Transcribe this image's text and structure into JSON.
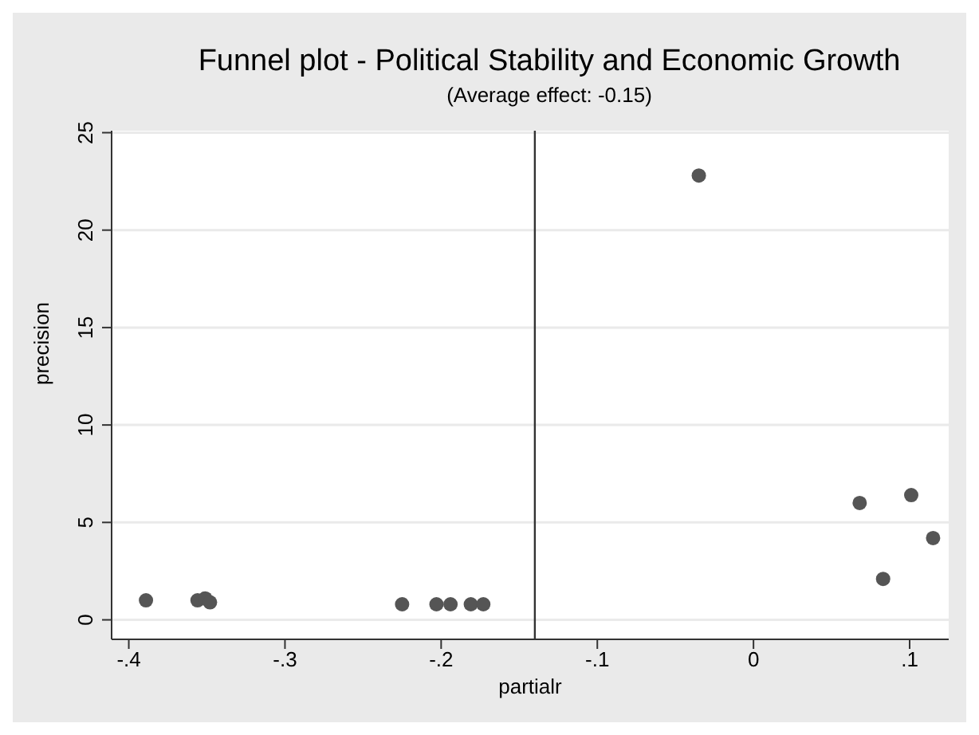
{
  "chart_data": {
    "type": "scatter",
    "title": "Funnel plot - Political Stability and Economic Growth",
    "subtitle": "(Average effect: -0.15)",
    "xlabel": "partialr",
    "ylabel": "precision",
    "x": [
      -0.389,
      -0.356,
      -0.351,
      -0.348,
      -0.225,
      -0.203,
      -0.194,
      -0.181,
      -0.173,
      -0.035,
      0.068,
      0.101,
      0.115,
      0.083
    ],
    "series": [
      {
        "color": "#555555",
        "values": [
          1.0,
          1.0,
          1.1,
          0.9,
          0.8,
          0.8,
          0.8,
          0.8,
          0.8,
          22.8,
          6.0,
          6.4,
          4.2,
          2.1
        ]
      }
    ],
    "xlim": [
      -0.411,
      0.125
    ],
    "xticks": [
      {
        "value": -0.4,
        "label": "-.4"
      },
      {
        "value": -0.3,
        "label": "-.3"
      },
      {
        "value": -0.2,
        "label": "-.2"
      },
      {
        "value": -0.1,
        "label": "-.1"
      },
      0,
      {
        "value": 0.1,
        "label": ".1"
      }
    ],
    "ylim": [
      -1,
      25.1
    ],
    "yticks": [
      0,
      5,
      10,
      15,
      20,
      25
    ],
    "ref_lines": [
      {
        "axis": "x",
        "value": -0.14,
        "color": "#333333"
      }
    ],
    "grid": "y",
    "marker": "circle",
    "legend": false
  }
}
